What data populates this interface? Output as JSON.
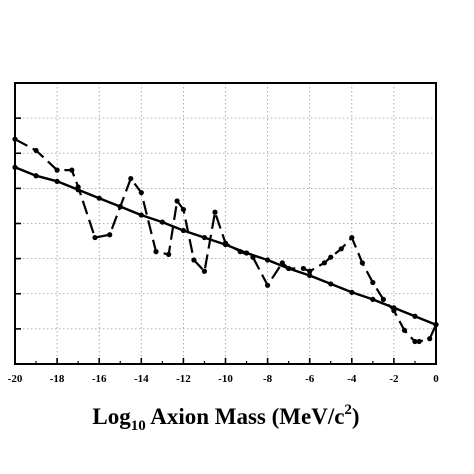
{
  "chart_data": {
    "type": "line",
    "xlabel": {
      "main": "Log",
      "sub": "10",
      "rest": " Axion Mass (MeV/c",
      "sup": "2",
      "end": ")"
    },
    "xlim": [
      -20,
      0
    ],
    "ylim": [
      0,
      10
    ],
    "x_ticks": [
      "-20",
      "-18",
      "-16",
      "-14",
      "-12",
      "-10",
      "-8",
      "-6",
      "-4",
      "-2",
      "0"
    ],
    "grid": true,
    "series": [
      {
        "style": "dashed",
        "x": [
          -20,
          -19,
          -18,
          -17.3,
          -17,
          -16.2,
          -15.5,
          -15,
          -14.5,
          -14,
          -13.3,
          -12.7,
          -12.3,
          -12,
          -11.5,
          -11,
          -10.5,
          -10,
          -9.3,
          -8.7,
          -8,
          -7.3,
          -7,
          -6.3,
          -6,
          -5.3,
          -5,
          -4.5,
          -4,
          -3.5,
          -3,
          -2.5,
          -2,
          -1.5,
          -1,
          -0.8,
          -0.3,
          0
        ],
        "y": [
          8.0,
          7.6,
          6.9,
          6.9,
          6.3,
          4.5,
          4.6,
          5.6,
          6.6,
          6.1,
          4.0,
          3.9,
          5.8,
          5.5,
          3.7,
          3.3,
          5.4,
          4.3,
          4.0,
          3.8,
          2.8,
          3.6,
          3.4,
          3.4,
          3.3,
          3.6,
          3.8,
          4.1,
          4.5,
          3.6,
          2.9,
          2.3,
          1.9,
          1.2,
          0.8,
          0.8,
          0.9,
          1.4
        ]
      },
      {
        "style": "solid",
        "x": [
          -20,
          -19,
          -18,
          -17,
          -16,
          -15,
          -14,
          -13,
          -12,
          -11,
          -10,
          -9,
          -8,
          -7,
          -6,
          -5,
          -4,
          -3,
          -2,
          -1,
          0
        ],
        "y": [
          7.0,
          6.7,
          6.5,
          6.2,
          5.9,
          5.6,
          5.3,
          5.05,
          4.75,
          4.5,
          4.25,
          3.95,
          3.7,
          3.4,
          3.15,
          2.85,
          2.55,
          2.3,
          2.0,
          1.7,
          1.4
        ]
      }
    ]
  }
}
